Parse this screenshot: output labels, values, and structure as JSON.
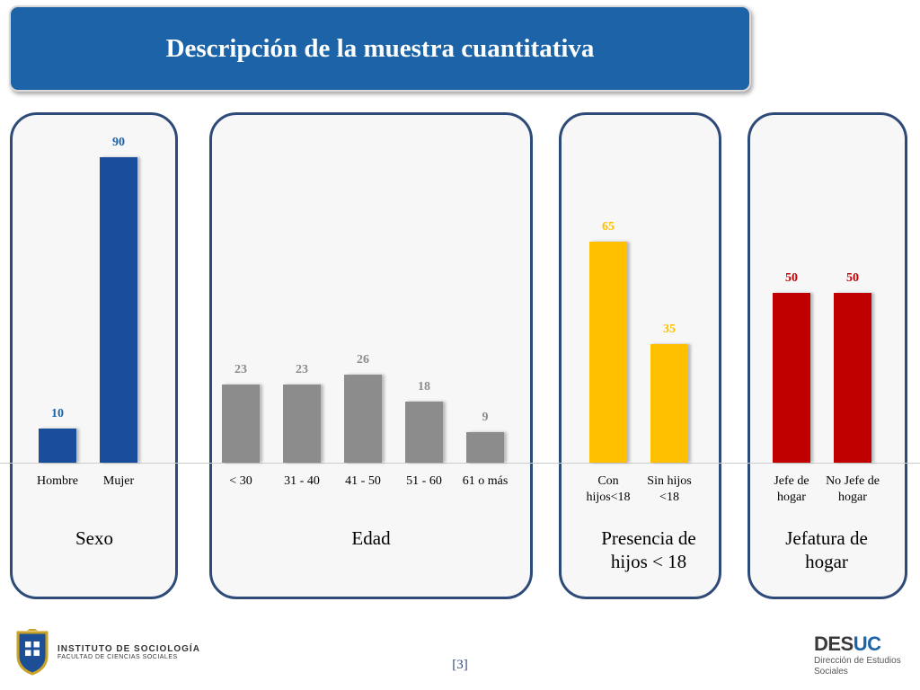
{
  "title": "Descripción de la muestra cuantitativa",
  "page_number": "[3]",
  "footer": {
    "institute_line1": "INSTITUTO DE SOCIOLOGÍA",
    "institute_line2": "FACULTAD DE CIENCIAS SOCIALES",
    "brand_des": "DES",
    "brand_uc": "UC",
    "brand_sub1": "Dirección de Estudios",
    "brand_sub2": "Sociales"
  },
  "chart_data": {
    "type": "bar",
    "ylim": [
      0,
      100
    ],
    "groups": [
      {
        "name": "Sexo",
        "color": "#1a4e9c",
        "label_color": "#1c63a8",
        "categories": [
          "Hombre",
          "Mujer"
        ],
        "values": [
          10,
          90
        ]
      },
      {
        "name": "Edad",
        "color": "#8c8c8c",
        "label_color": "#8c8c8c",
        "categories": [
          "< 30",
          "31 - 40",
          "41 - 50",
          "51 - 60",
          "61 o más"
        ],
        "values": [
          23,
          23,
          26,
          18,
          9
        ]
      },
      {
        "name": "Presencia de hijos < 18",
        "color": "#ffc000",
        "label_color": "#ffc000",
        "categories": [
          "Con hijos<18",
          "Sin hijos <18"
        ],
        "values": [
          65,
          35
        ]
      },
      {
        "name": "Jefatura de hogar",
        "color": "#c00000",
        "label_color": "#c00000",
        "categories": [
          "Jefe de hogar",
          "No Jefe de hogar"
        ],
        "values": [
          50,
          50
        ]
      }
    ]
  }
}
